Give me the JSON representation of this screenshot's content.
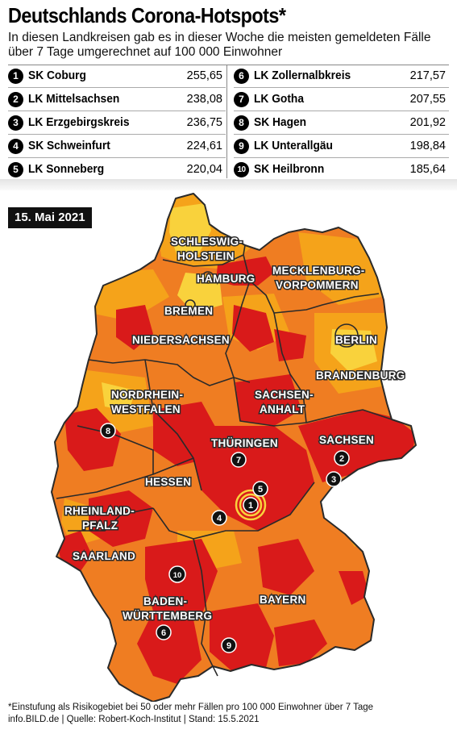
{
  "title": "Deutschlands Corona-Hotspots*",
  "subtitle": "In diesen Landkreisen gab es in dieser Woche die meisten gemeldeten Fälle über 7 Tage umgerechnet auf 100 000 Einwohner",
  "hotspots_left": [
    {
      "rank": "1",
      "name": "SK Coburg",
      "value": "255,65"
    },
    {
      "rank": "2",
      "name": "LK Mittelsachsen",
      "value": "238,08"
    },
    {
      "rank": "3",
      "name": "LK Erzgebirgskreis",
      "value": "236,75"
    },
    {
      "rank": "4",
      "name": "SK Schweinfurt",
      "value": "224,61"
    },
    {
      "rank": "5",
      "name": "LK Sonneberg",
      "value": "220,04"
    }
  ],
  "hotspots_right": [
    {
      "rank": "6",
      "name": "LK Zollernalbkreis",
      "value": "217,57"
    },
    {
      "rank": "7",
      "name": "LK Gotha",
      "value": "207,55"
    },
    {
      "rank": "8",
      "name": "SK Hagen",
      "value": "201,92"
    },
    {
      "rank": "9",
      "name": "LK Unterallgäu",
      "value": "198,84"
    },
    {
      "rank": "10",
      "name": "SK Heilbronn",
      "value": "185,64"
    }
  ],
  "date_label": "15. Mai 2021",
  "states": {
    "sh_1": "SCHLESWIG-",
    "sh_2": "HOLSTEIN",
    "hamburg": "HAMBURG",
    "mv_1": "MECKLENBURG-",
    "mv_2": "VORPOMMERN",
    "bremen": "BREMEN",
    "niedersachsen": "NIEDERSACHSEN",
    "berlin": "BERLIN",
    "brandenburg": "BRANDENBURG",
    "nrw_1": "NORDRHEIN-",
    "nrw_2": "WESTFALEN",
    "st_1": "SACHSEN-",
    "st_2": "ANHALT",
    "thueringen": "THÜRINGEN",
    "sachsen": "SACHSEN",
    "hessen": "HESSEN",
    "rp_1": "RHEINLAND-",
    "rp_2": "PFALZ",
    "saarland": "SAARLAND",
    "bw_1": "BADEN-",
    "bw_2": "WÜRTTEMBERG",
    "bayern": "BAYERN"
  },
  "map_markers": [
    "1",
    "2",
    "3",
    "4",
    "5",
    "6",
    "7",
    "8",
    "9",
    "10"
  ],
  "footnote_1": "*Einstufung als Risikogebiet bei 50 oder mehr Fällen pro 100 000 Einwohner über 7 Tage",
  "footnote_2": "info.BILD.de | Quelle: Robert-Koch-Institut | Stand: 15.5.2021",
  "colors": {
    "red": "#d91a1a",
    "orange": "#ef7d22",
    "amber": "#f5a31a",
    "yellow": "#f9d23c",
    "border": "#2a2a2a"
  }
}
